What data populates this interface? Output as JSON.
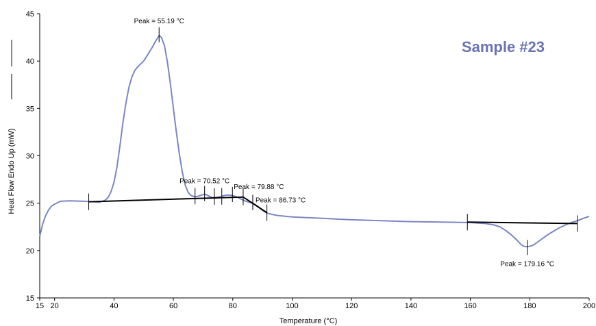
{
  "chart_data": {
    "type": "line",
    "title": "Sample #23",
    "xlabel": "Temperature (°C)",
    "ylabel": "Heat Flow Endo Up (mW)",
    "xlim": [
      15,
      200
    ],
    "ylim": [
      15,
      45
    ],
    "x_ticks": [
      15,
      20,
      40,
      60,
      80,
      100,
      120,
      140,
      160,
      180,
      200
    ],
    "x_tick_labels": [
      "15",
      "20",
      "40",
      "60",
      "80",
      "100",
      "120",
      "140",
      "160",
      "180",
      "200"
    ],
    "y_ticks": [
      15,
      20,
      25,
      30,
      35,
      40,
      45
    ],
    "y_tick_labels": [
      "15",
      "20",
      "25",
      "30",
      "35",
      "40",
      "45"
    ],
    "grid": false,
    "colors": {
      "curve": "#7b86c4",
      "baseline": "#000000",
      "title": "#6a74b0"
    },
    "series": [
      {
        "values_x": [
          15,
          16,
          17,
          18,
          19,
          20,
          22,
          25,
          30,
          33,
          35,
          36,
          37,
          38,
          39,
          40,
          41,
          42,
          43,
          44,
          45,
          46,
          47,
          48,
          49,
          50,
          51,
          52,
          53,
          54,
          55,
          55.19,
          56,
          57,
          58,
          59,
          60,
          61,
          62,
          63,
          64,
          65,
          66,
          67,
          68,
          69,
          70,
          70.52,
          71,
          72,
          73,
          74,
          75,
          76,
          77,
          78,
          79,
          79.88,
          81,
          82,
          83,
          84,
          85,
          86,
          86.73,
          87,
          88,
          89,
          90,
          91,
          92,
          95,
          100,
          110,
          120,
          130,
          140,
          150,
          155,
          160,
          165,
          168,
          170,
          172,
          174,
          176,
          177,
          178,
          179,
          179.16,
          180,
          181,
          182,
          184,
          186,
          188,
          190,
          192,
          194,
          196,
          198,
          200
        ],
        "values_y": [
          21.5,
          22.8,
          23.7,
          24.3,
          24.7,
          24.9,
          25.2,
          25.25,
          25.2,
          25.15,
          25.1,
          25.2,
          25.3,
          25.6,
          26.2,
          27.2,
          28.8,
          31.0,
          33.5,
          35.5,
          37.2,
          38.3,
          39.0,
          39.4,
          39.7,
          40.0,
          40.5,
          41.0,
          41.5,
          42.1,
          42.6,
          42.7,
          42.5,
          41.6,
          39.9,
          37.6,
          35.0,
          32.5,
          30.2,
          28.3,
          26.9,
          26.1,
          25.8,
          25.7,
          25.7,
          25.8,
          25.9,
          25.95,
          25.9,
          25.75,
          25.6,
          25.6,
          25.65,
          25.7,
          25.8,
          25.85,
          25.85,
          25.8,
          25.7,
          25.55,
          25.4,
          25.25,
          25.15,
          25.05,
          25.0,
          24.95,
          24.75,
          24.5,
          24.25,
          24.05,
          23.9,
          23.7,
          23.55,
          23.4,
          23.25,
          23.15,
          23.05,
          23.0,
          22.98,
          22.95,
          22.85,
          22.7,
          22.5,
          22.1,
          21.6,
          21.0,
          20.65,
          20.45,
          20.4,
          20.4,
          20.45,
          20.55,
          20.75,
          21.2,
          21.65,
          22.05,
          22.4,
          22.7,
          22.95,
          23.15,
          23.4,
          23.6
        ]
      }
    ],
    "baselines": [
      {
        "x": [
          31.5,
          83.5,
          91.5
        ],
        "y": [
          25.15,
          25.65,
          24.0
        ]
      },
      {
        "x": [
          159,
          196
        ],
        "y": [
          23.0,
          22.85
        ]
      }
    ],
    "peak_markers": [
      {
        "x": 55.19,
        "y": 42.7,
        "label": "Peak = 55.19 °C",
        "side": "above"
      },
      {
        "x": 70.52,
        "y": 25.95,
        "label": "Peak = 70.52 °C",
        "side": "above"
      },
      {
        "x": 79.88,
        "y": 25.85,
        "label": "Peak = 79.88 °C",
        "side": "above"
      },
      {
        "x": 86.73,
        "y": 25.0,
        "label": "Peak = 86.73 °C",
        "side": "above"
      },
      {
        "x": 179.16,
        "y": 20.4,
        "label": "Peak = 179.16 °C",
        "side": "below"
      }
    ],
    "integration_limits": [
      {
        "x": 31.5,
        "y": 25.15
      },
      {
        "x": 67.3,
        "y": 25.75
      },
      {
        "x": 73.8,
        "y": 25.7
      },
      {
        "x": 76.3,
        "y": 25.72
      },
      {
        "x": 83.5,
        "y": 25.65
      },
      {
        "x": 91.5,
        "y": 24.0
      },
      {
        "x": 159,
        "y": 23.0
      },
      {
        "x": 196,
        "y": 22.85
      }
    ]
  }
}
